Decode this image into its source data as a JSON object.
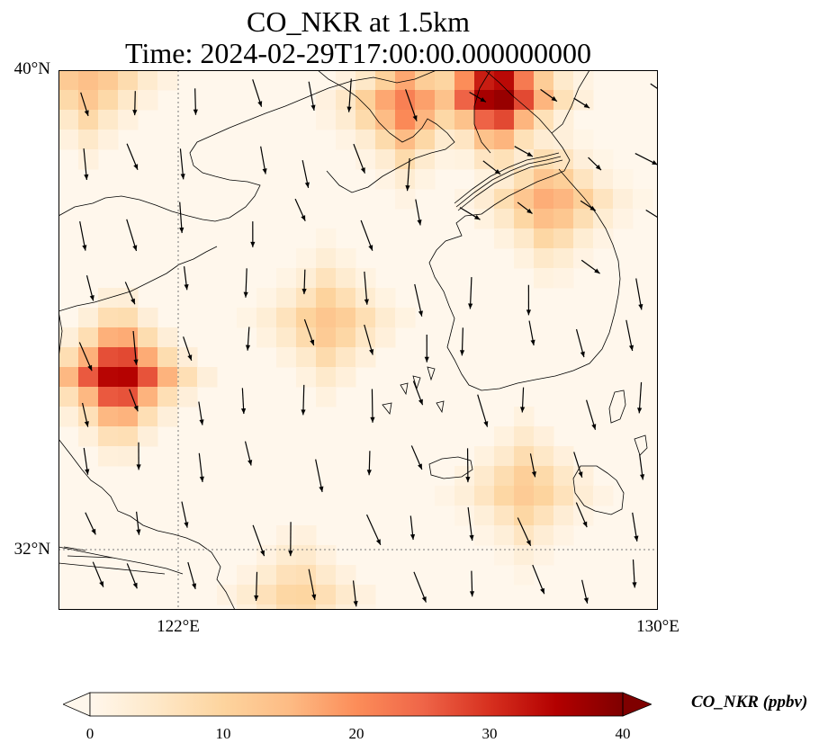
{
  "title": {
    "line1": "CO_NKR at 1.5km",
    "line2": "Time: 2024-02-29T17:00:00.000000000"
  },
  "map": {
    "lat_labels": [
      "40°N",
      "32°N"
    ],
    "lon_labels": [
      "122°E",
      "130°E"
    ],
    "extent": {
      "lon": [
        120,
        130
      ],
      "lat": [
        31,
        40
      ]
    },
    "gridlines": {
      "lon": 122,
      "lat": 32,
      "style": "dotted"
    }
  },
  "colorbar": {
    "label": "CO_NKR (ppbv)",
    "ticks": [
      "0",
      "10",
      "20",
      "30",
      "40"
    ],
    "range": [
      0,
      40
    ],
    "extend": "both",
    "colormap": "OrRd",
    "colors": [
      "#fff7ec",
      "#fee8c8",
      "#fdd49e",
      "#fdbb84",
      "#fc8d59",
      "#ef6548",
      "#d7301f",
      "#b30000",
      "#7f0000"
    ]
  },
  "chart_data": {
    "type": "heatmap",
    "variable": "CO_NKR",
    "units": "ppbv",
    "hotspots": [
      {
        "lon": 121.0,
        "lat": 34.9,
        "value": 36
      },
      {
        "lon": 127.3,
        "lat": 39.6,
        "value": 40
      },
      {
        "lon": 125.8,
        "lat": 39.4,
        "value": 22
      },
      {
        "lon": 120.5,
        "lat": 39.8,
        "value": 14
      },
      {
        "lon": 128.2,
        "lat": 37.8,
        "value": 17
      },
      {
        "lon": 124.5,
        "lat": 35.8,
        "value": 13
      },
      {
        "lon": 127.8,
        "lat": 33.0,
        "value": 12
      },
      {
        "lon": 124.0,
        "lat": 31.2,
        "value": 10
      }
    ],
    "wind": "predominantly northerly to north-northwesterly flow"
  }
}
